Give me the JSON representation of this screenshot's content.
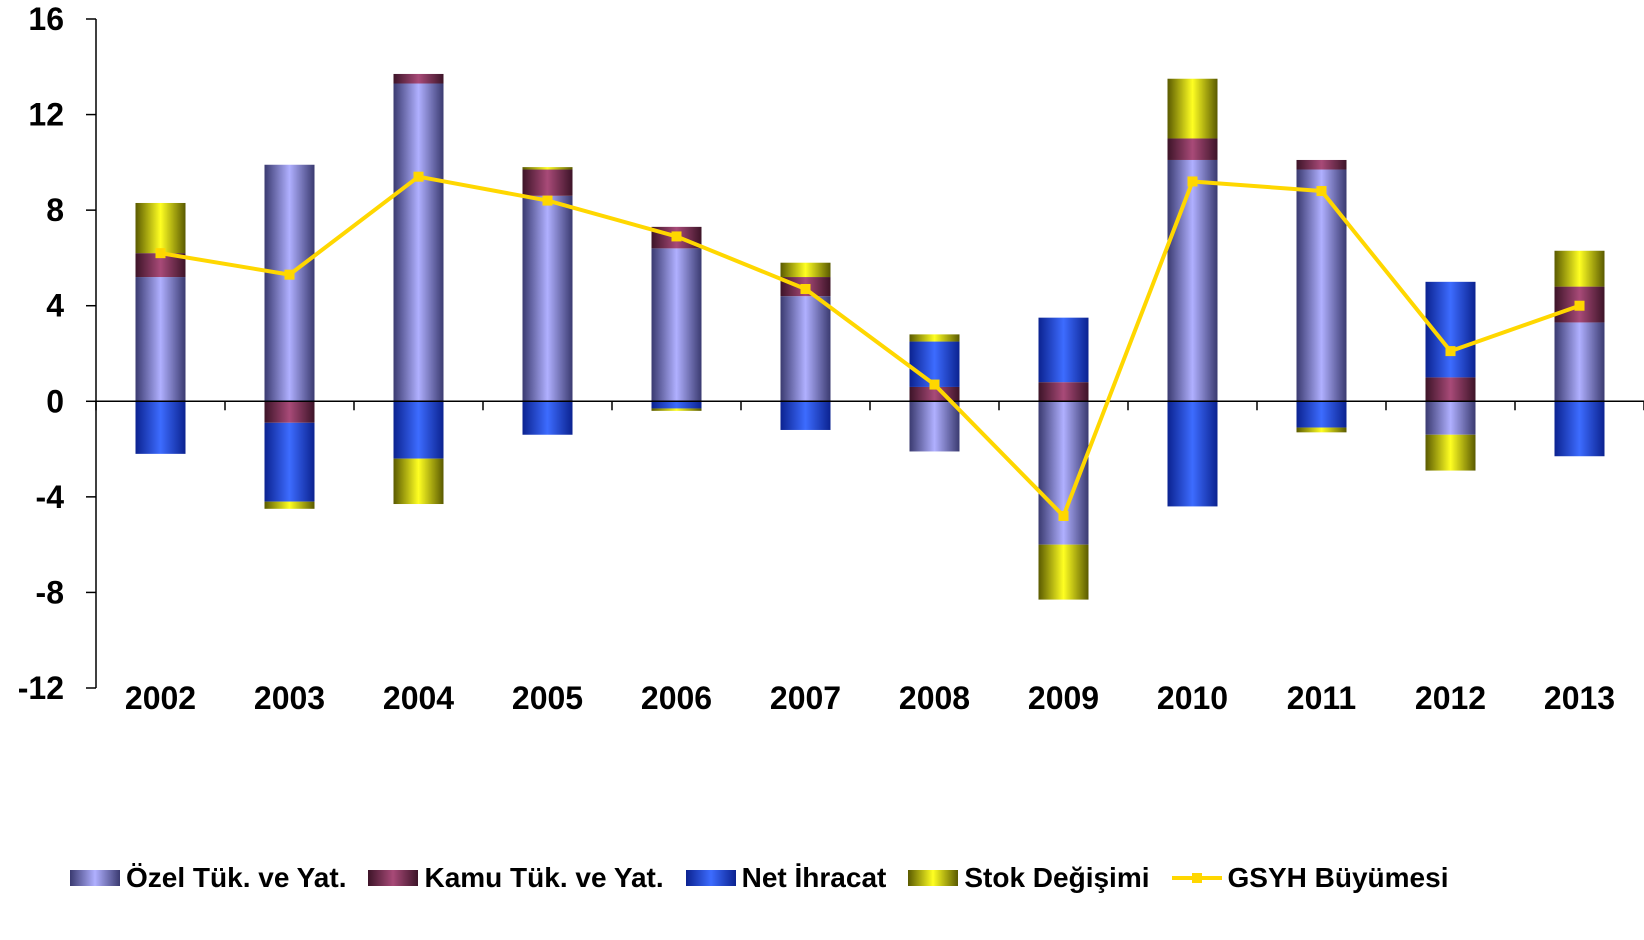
{
  "chart_data": {
    "type": "bar",
    "stacked": true,
    "categories": [
      "2002",
      "2003",
      "2004",
      "2005",
      "2006",
      "2007",
      "2008",
      "2009",
      "2010",
      "2011",
      "2012",
      "2013"
    ],
    "ylim": [
      -12,
      16
    ],
    "yticks": [
      "-12",
      "-8",
      "-4",
      "0",
      "4",
      "8",
      "12",
      "16"
    ],
    "ytick_values": [
      -12,
      -8,
      -4,
      0,
      4,
      8,
      12,
      16
    ],
    "grid": false,
    "legend_position": "bottom",
    "series": [
      {
        "name": "Özel Tük. ve Yat.",
        "kind": "bar",
        "color": "#9999FF",
        "values": [
          5.2,
          9.9,
          13.3,
          8.6,
          6.4,
          4.4,
          -2.1,
          -6.0,
          10.1,
          9.7,
          -1.4,
          3.3
        ]
      },
      {
        "name": "Kamu Tük. ve Yat.",
        "kind": "bar",
        "color": "#993366",
        "values": [
          1.0,
          -0.9,
          0.4,
          1.1,
          0.9,
          0.8,
          0.6,
          0.8,
          0.9,
          0.4,
          1.0,
          1.5
        ]
      },
      {
        "name": "Net İhracat",
        "kind": "bar",
        "color": "#1F4FE0",
        "values": [
          -2.2,
          -3.3,
          -2.4,
          -1.4,
          -0.3,
          -1.2,
          1.9,
          2.7,
          -4.4,
          -1.1,
          4.0,
          -2.3
        ]
      },
      {
        "name": "Stok Değişimi",
        "kind": "bar",
        "color": "#FFFF00",
        "values": [
          2.1,
          -0.3,
          -1.9,
          0.1,
          -0.1,
          0.6,
          0.3,
          -2.3,
          2.5,
          -0.2,
          -1.5,
          1.5
        ]
      },
      {
        "name": "GSYH Büyümesi",
        "kind": "line",
        "color": "#FFD700",
        "values": [
          6.2,
          5.3,
          9.4,
          8.4,
          6.9,
          4.7,
          0.7,
          -4.8,
          9.2,
          8.8,
          2.1,
          4.0
        ]
      }
    ]
  }
}
